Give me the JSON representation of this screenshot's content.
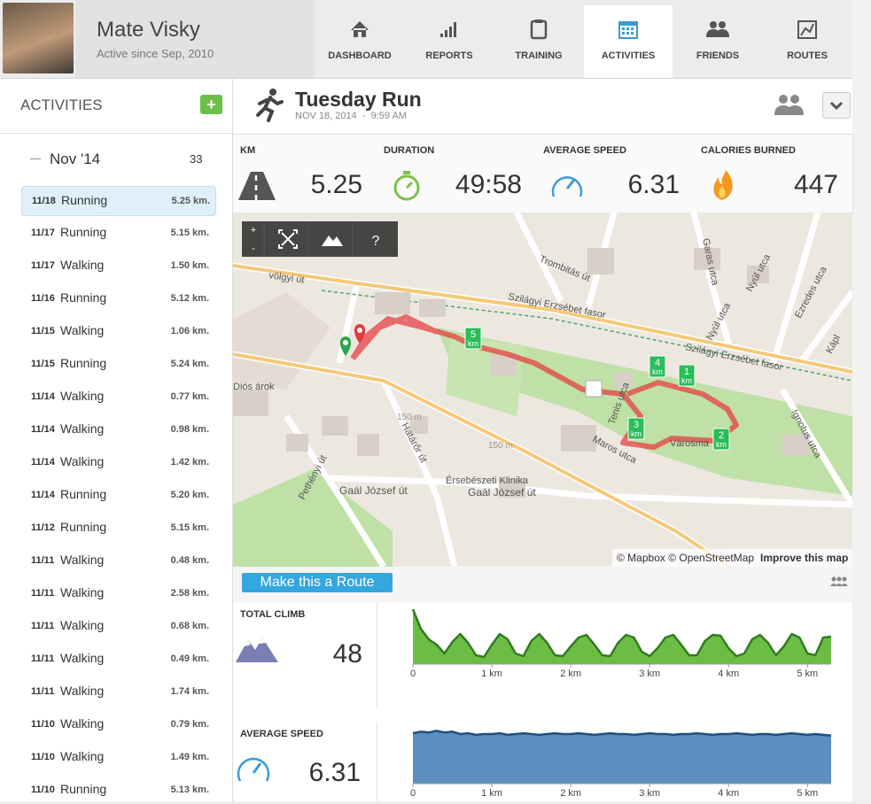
{
  "profile": {
    "name": "Mate Visky",
    "since": "Active since Sep, 2010"
  },
  "nav": [
    {
      "label": "DASHBOARD"
    },
    {
      "label": "REPORTS"
    },
    {
      "label": "TRAINING"
    },
    {
      "label": "ACTIVITIES",
      "active": true
    },
    {
      "label": "FRIENDS"
    },
    {
      "label": "ROUTES"
    }
  ],
  "sidebar": {
    "title": "ACTIVITIES",
    "add": "+",
    "month": "Nov '14",
    "count": 33,
    "items": [
      {
        "date": "11/18",
        "type": "Running",
        "distance": "5.25 km.",
        "selected": true
      },
      {
        "date": "11/17",
        "type": "Running",
        "distance": "5.15 km."
      },
      {
        "date": "11/17",
        "type": "Walking",
        "distance": "1.50 km."
      },
      {
        "date": "11/16",
        "type": "Running",
        "distance": "5.12 km."
      },
      {
        "date": "11/15",
        "type": "Walking",
        "distance": "1.06 km."
      },
      {
        "date": "11/15",
        "type": "Running",
        "distance": "5.24 km."
      },
      {
        "date": "11/14",
        "type": "Walking",
        "distance": "0.77 km."
      },
      {
        "date": "11/14",
        "type": "Walking",
        "distance": "0.98 km."
      },
      {
        "date": "11/14",
        "type": "Walking",
        "distance": "1.42 km."
      },
      {
        "date": "11/14",
        "type": "Running",
        "distance": "5.20 km."
      },
      {
        "date": "11/12",
        "type": "Running",
        "distance": "5.15 km."
      },
      {
        "date": "11/11",
        "type": "Walking",
        "distance": "0.48 km."
      },
      {
        "date": "11/11",
        "type": "Walking",
        "distance": "2.58 km."
      },
      {
        "date": "11/11",
        "type": "Walking",
        "distance": "0.68 km."
      },
      {
        "date": "11/11",
        "type": "Walking",
        "distance": "0.49 km."
      },
      {
        "date": "11/11",
        "type": "Walking",
        "distance": "1.74 km."
      },
      {
        "date": "11/10",
        "type": "Walking",
        "distance": "0.79 km."
      },
      {
        "date": "11/10",
        "type": "Walking",
        "distance": "1.49 km."
      },
      {
        "date": "11/10",
        "type": "Running",
        "distance": "5.13 km."
      }
    ]
  },
  "activity": {
    "title": "Tuesday Run",
    "date": "NOV 18, 2014  -  9:59 AM"
  },
  "stats": [
    {
      "label": "KM",
      "value": 5.25
    },
    {
      "label": "DURATION",
      "value": "49:58"
    },
    {
      "label": "AVERAGE SPEED",
      "value": 6.31
    },
    {
      "label": "CALORIES BURNED",
      "value": 447
    }
  ],
  "map": {
    "controls": [
      "+",
      "-",
      "?"
    ],
    "attribution": "© Mapbox © OpenStreetMap",
    "improve": "Improve this map",
    "streets": [
      "Trombitás út",
      "Szilágyi Erzsébet fasor",
      "Szilágyi Erzsébet fasor",
      "Nyúl utca",
      "Nyúl utca",
      "Garas utca",
      "Ezredes utca",
      "Ignotus utca",
      "Diós árok",
      "Határőr út",
      "Pethényi út",
      "Gaál József út",
      "Gaál József út",
      "Érsebészeti Klinika",
      "Maros utca",
      "Városma",
      "Tenis utca",
      "150 m",
      "150 m",
      "völgyi út",
      "Kápl"
    ],
    "markers": [
      "5",
      "4",
      "1",
      "3",
      "2"
    ],
    "marker_unit": "km"
  },
  "route_button": "Make this a Route",
  "chart_data": [
    {
      "type": "area",
      "title": "TOTAL CLIMB",
      "summary": 48,
      "color": "#6cbd45",
      "line_color": "#2f7d1e",
      "x": [
        0,
        0.1,
        0.2,
        0.3,
        0.4,
        0.5,
        0.6,
        0.7,
        0.8,
        0.9,
        1,
        1.1,
        1.2,
        1.3,
        1.4,
        1.5,
        1.6,
        1.7,
        1.8,
        1.9,
        2,
        2.1,
        2.2,
        2.3,
        2.4,
        2.5,
        2.6,
        2.7,
        2.8,
        2.9,
        3,
        3.1,
        3.2,
        3.3,
        3.4,
        3.5,
        3.6,
        3.7,
        3.8,
        3.9,
        4,
        4.1,
        4.2,
        4.3,
        4.4,
        4.5,
        4.6,
        4.7,
        4.8,
        4.9,
        5,
        5.1,
        5.2,
        5.3
      ],
      "values": [
        62,
        40,
        28,
        22,
        12,
        25,
        34,
        24,
        10,
        8,
        22,
        34,
        28,
        12,
        9,
        26,
        34,
        24,
        10,
        9,
        20,
        30,
        33,
        22,
        10,
        9,
        24,
        33,
        30,
        14,
        9,
        18,
        30,
        33,
        22,
        10,
        10,
        26,
        33,
        32,
        18,
        9,
        12,
        28,
        33,
        24,
        10,
        20,
        34,
        30,
        12,
        10,
        30,
        31
      ],
      "xlim": [
        0,
        5.3
      ],
      "ylim": [
        0,
        65
      ],
      "xticks": [
        0,
        {
          "value": 1,
          "label": "1 km"
        },
        {
          "value": 2,
          "label": "2 km"
        },
        {
          "value": 3,
          "label": "3 km"
        },
        {
          "value": 4,
          "label": "4 km"
        },
        {
          "value": 5,
          "label": "5 km"
        }
      ]
    },
    {
      "type": "area",
      "title": "AVERAGE SPEED",
      "summary": 6.31,
      "color": "#5b8fbf",
      "line_color": "#1f4f80",
      "x": [
        0,
        0.1,
        0.2,
        0.3,
        0.4,
        0.5,
        0.6,
        0.7,
        0.8,
        0.9,
        1,
        1.1,
        1.2,
        1.3,
        1.4,
        1.5,
        1.6,
        1.7,
        1.8,
        1.9,
        2,
        2.1,
        2.2,
        2.3,
        2.4,
        2.5,
        2.6,
        2.7,
        2.8,
        2.9,
        3,
        3.1,
        3.2,
        3.3,
        3.4,
        3.5,
        3.6,
        3.7,
        3.8,
        3.9,
        4,
        4.1,
        4.2,
        4.3,
        4.4,
        4.5,
        4.6,
        4.7,
        4.8,
        4.9,
        5,
        5.1,
        5.2,
        5.3
      ],
      "values": [
        6.3,
        6.5,
        6.4,
        6.6,
        6.4,
        6.5,
        6.2,
        6.3,
        6.1,
        6.2,
        6.2,
        6.3,
        6.1,
        6.2,
        6.3,
        6.2,
        6.1,
        6.2,
        6.3,
        6.2,
        6.2,
        6.3,
        6.2,
        6.1,
        6.2,
        6.3,
        6.2,
        6.2,
        6.1,
        6.2,
        6.3,
        6.2,
        6.2,
        6.1,
        6.2,
        6.2,
        6.3,
        6.2,
        6.1,
        6.2,
        6.2,
        6.3,
        6.2,
        6.1,
        6.2,
        6.2,
        6.1,
        6.2,
        6.3,
        6.2,
        6.1,
        6.2,
        6.1,
        6.0
      ],
      "xlim": [
        0,
        5.3
      ],
      "ylim": [
        0,
        7.2
      ],
      "xticks": [
        0,
        {
          "value": 1,
          "label": "1 km"
        },
        {
          "value": 2,
          "label": "2 km"
        },
        {
          "value": 3,
          "label": "3 km"
        },
        {
          "value": 4,
          "label": "4 km"
        },
        {
          "value": 5,
          "label": "5 km"
        }
      ]
    }
  ]
}
